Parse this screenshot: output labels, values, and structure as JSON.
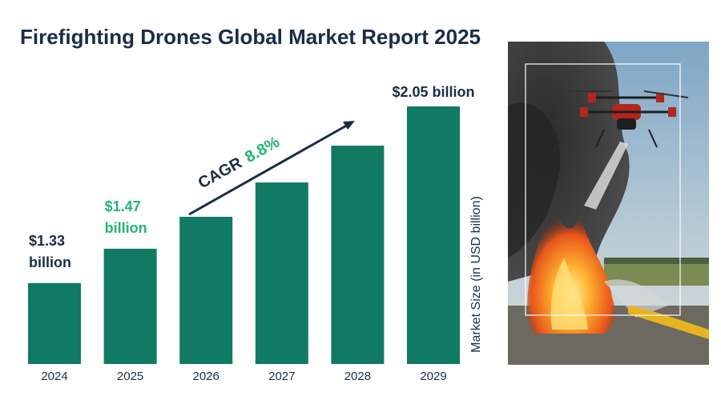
{
  "title": "Firefighting Drones Global Market Report 2025",
  "chart_data": {
    "type": "bar",
    "title": "Firefighting Drones Global Market Report 2025",
    "categories": [
      "2024",
      "2025",
      "2026",
      "2027",
      "2028",
      "2029"
    ],
    "values": [
      1.33,
      1.47,
      1.6,
      1.74,
      1.89,
      2.05
    ],
    "unit": "USD billion",
    "ylabel": "Market Size (in USD billion)",
    "xlabel": "",
    "ylim": [
      1.0,
      2.05
    ],
    "data_labels": [
      {
        "index": 0,
        "line1": "$1.33",
        "line2": "billion",
        "color": "#1b2d45"
      },
      {
        "index": 1,
        "line1": "$1.47",
        "line2": "billion",
        "color": "#22b573"
      },
      {
        "index": 5,
        "line1": "$2.05 billion",
        "line2": "",
        "color": "#1b2d45"
      }
    ],
    "annotation": {
      "label": "CAGR",
      "value": "8.8%"
    },
    "bar_color": "#107a63",
    "grid": false
  },
  "colors": {
    "title": "#1b2d45",
    "bar": "#107a63",
    "highlight": "#22b573"
  }
}
